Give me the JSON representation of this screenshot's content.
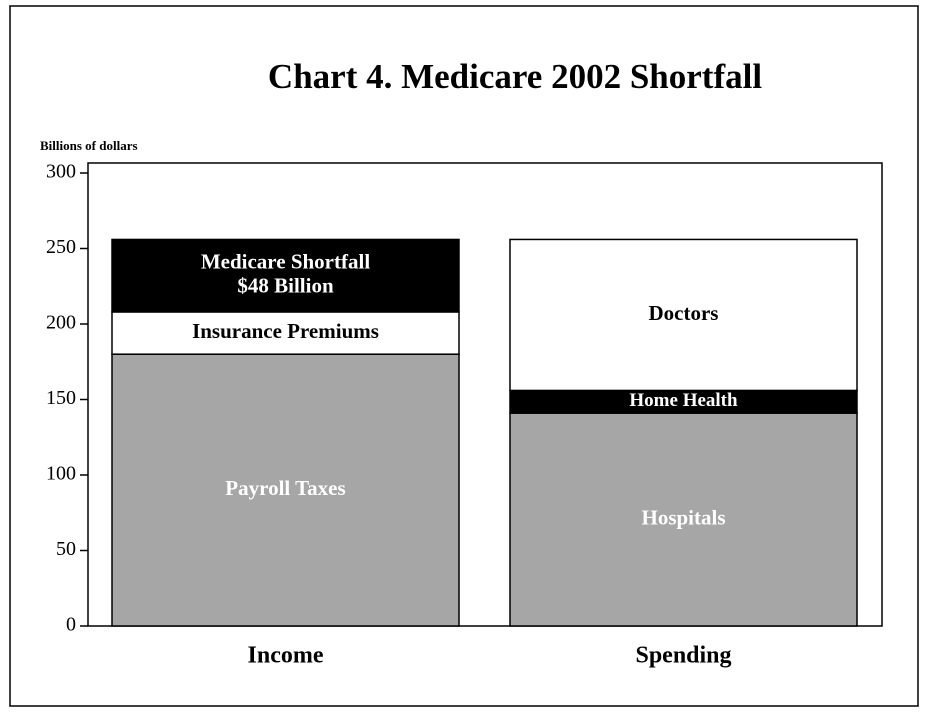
{
  "chart_data": {
    "type": "stacked-bar",
    "title": "Chart 4.  Medicare 2002 Shortfall",
    "y_label": "Billions of dollars",
    "categories": [
      "Income",
      "Spending"
    ],
    "series": [
      {
        "name": "Payroll Taxes",
        "color": "#a6a6a6",
        "values": [
          180,
          null
        ]
      },
      {
        "name": "Insurance Premiums",
        "color": "#ffffff",
        "values": [
          28,
          null
        ]
      },
      {
        "name": "Medicare Shortfall",
        "color": "#000000",
        "values": [
          48,
          null
        ],
        "value_labels": [
          "$48 Billion",
          null
        ]
      },
      {
        "name": "Hospitals",
        "color": "#a6a6a6",
        "values": [
          null,
          141
        ]
      },
      {
        "name": "Home Health",
        "color": "#000000",
        "values": [
          null,
          15
        ]
      },
      {
        "name": "Doctors",
        "color": "#ffffff",
        "values": [
          null,
          100
        ]
      }
    ],
    "ylim": [
      0,
      300
    ],
    "yticks": [
      0,
      50,
      100,
      150,
      200,
      250,
      300
    ]
  }
}
